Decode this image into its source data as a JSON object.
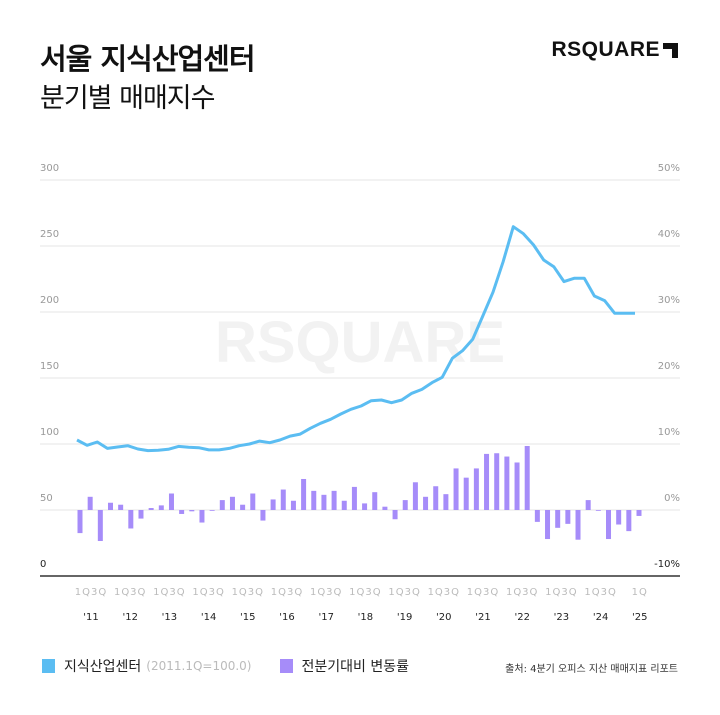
{
  "header": {
    "title": "서울 지식산업센터",
    "subtitle": "분기별 매매지수",
    "logo_text": "RSQUARE"
  },
  "watermark": "RSQUARE",
  "legend": {
    "line_label": "지식산업센터",
    "line_note": "(2011.1Q=100.0)",
    "bar_label": "전분기대비 변동률"
  },
  "source": "출처: 4분기 오피스 지산 매매지표 리포트",
  "colors": {
    "line": "#5bbdf2",
    "bar": "#a68cf9",
    "grid": "#e6e6e6",
    "axis": "#333333"
  },
  "chart_data": {
    "type": "bar+line",
    "left_axis": {
      "ylim": [
        0,
        300
      ],
      "ticks": [
        "300",
        "250",
        "200",
        "150",
        "100",
        "50",
        "0"
      ]
    },
    "right_axis": {
      "ylim": [
        -10,
        50
      ],
      "unit": "%",
      "ticks": [
        "50%",
        "40%",
        "30%",
        "20%",
        "10%",
        "0%",
        "-10%"
      ]
    },
    "x_tick_groups": [
      {
        "quarters": "1Q3Q",
        "year": "'11"
      },
      {
        "quarters": "1Q3Q",
        "year": "'12"
      },
      {
        "quarters": "1Q3Q",
        "year": "'13"
      },
      {
        "quarters": "1Q3Q",
        "year": "'14"
      },
      {
        "quarters": "1Q3Q",
        "year": "'15"
      },
      {
        "quarters": "1Q3Q",
        "year": "'16"
      },
      {
        "quarters": "1Q3Q",
        "year": "'17"
      },
      {
        "quarters": "1Q3Q",
        "year": "'18"
      },
      {
        "quarters": "1Q3Q",
        "year": "'19"
      },
      {
        "quarters": "1Q3Q",
        "year": "'20"
      },
      {
        "quarters": "1Q3Q",
        "year": "'21"
      },
      {
        "quarters": "1Q3Q",
        "year": "'22"
      },
      {
        "quarters": "1Q3Q",
        "year": "'23"
      },
      {
        "quarters": "1Q3Q",
        "year": "'24"
      },
      {
        "quarters": "1Q",
        "year": "'25"
      }
    ],
    "grid": true,
    "series": [
      {
        "name": "지식산업센터",
        "type": "line",
        "axis": "left",
        "values": [
          103,
          99,
          101.5,
          96.7,
          97.7,
          98.7,
          96.2,
          95,
          95.2,
          96,
          98.2,
          97.5,
          97.2,
          95.5,
          95.5,
          96.7,
          98.7,
          100,
          102.2,
          101,
          103,
          106,
          107.5,
          111.9,
          115.7,
          118.7,
          122.7,
          126.3,
          128.8,
          132.8,
          133.3,
          131.3,
          133.3,
          138.4,
          141.4,
          146.5,
          150.5,
          165,
          170.7,
          179.3,
          197,
          215,
          238,
          264.6,
          259.3,
          250.8,
          239.4,
          234.3,
          223,
          225.5,
          225.5,
          212.1,
          208.6,
          199,
          199,
          199
        ]
      },
      {
        "name": "전분기대비 변동률",
        "type": "bar",
        "axis": "right",
        "values": [
          -3.5,
          2.0,
          -4.7,
          1.1,
          0.8,
          -2.8,
          -1.3,
          0.3,
          0.7,
          2.5,
          -0.6,
          -0.2,
          -1.9,
          0.0,
          1.5,
          2.0,
          0.8,
          2.5,
          -1.6,
          1.6,
          3.1,
          1.4,
          4.7,
          2.9,
          2.3,
          2.9,
          1.4,
          3.5,
          1.0,
          2.7,
          0.5,
          -1.4,
          1.5,
          4.2,
          2.0,
          3.6,
          2.4,
          6.3,
          4.9,
          6.3,
          8.5,
          8.6,
          8.1,
          7.2,
          9.7,
          -1.8,
          -4.4,
          -2.7,
          -2.1,
          -4.5,
          1.5,
          -0.1,
          -4.4,
          -2.2,
          -3.2,
          -0.9
        ]
      }
    ],
    "legend_position": "bottom-left"
  }
}
